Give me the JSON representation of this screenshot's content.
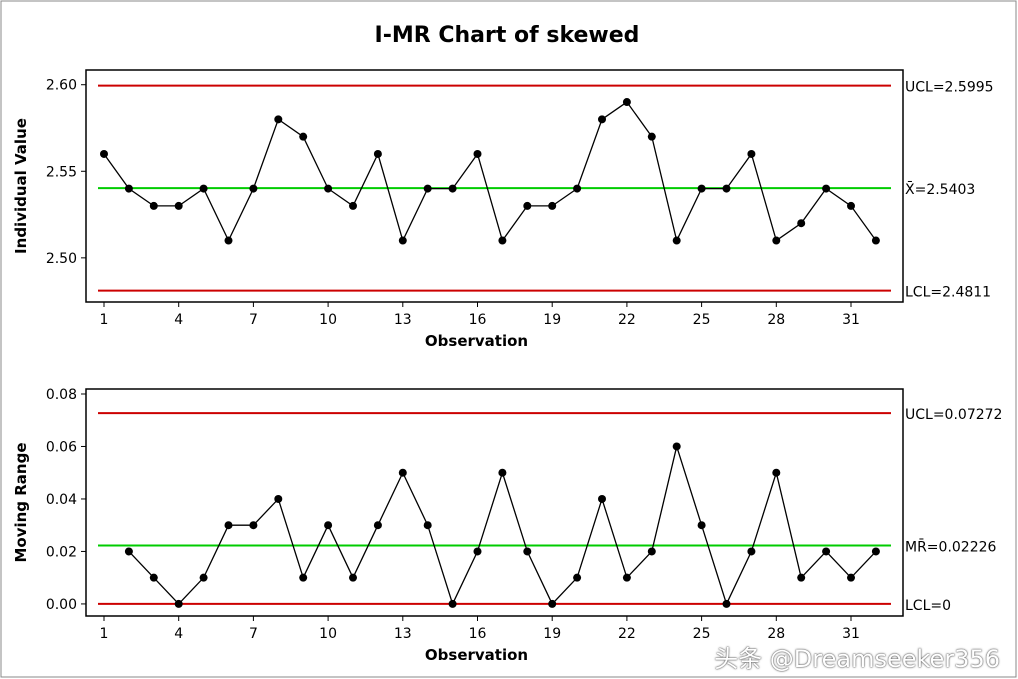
{
  "chart_data": {
    "type": "line",
    "title": "I-MR Chart of skewed",
    "watermark": "头条 @Dreamseeker356",
    "colors": {
      "data": "#000000",
      "limit": "#cc0000",
      "center": "#00cc00"
    },
    "panels": [
      {
        "name": "individual",
        "ylabel": "Individual Value",
        "xlabel": "Observation",
        "ylim": [
          2.4745,
          2.6085
        ],
        "yticks": [
          2.5,
          2.55,
          2.6
        ],
        "ytick_labels": [
          "2.50",
          "2.55",
          "2.60"
        ],
        "xticks": [
          1,
          4,
          7,
          10,
          13,
          16,
          19,
          22,
          25,
          28,
          31
        ],
        "x": [
          1,
          2,
          3,
          4,
          5,
          6,
          7,
          8,
          9,
          10,
          11,
          12,
          13,
          14,
          15,
          16,
          17,
          18,
          19,
          20,
          21,
          22,
          23,
          24,
          25,
          26,
          27,
          28,
          29,
          30,
          31,
          32
        ],
        "values": [
          2.56,
          2.54,
          2.53,
          2.53,
          2.54,
          2.51,
          2.54,
          2.58,
          2.57,
          2.54,
          2.53,
          2.56,
          2.51,
          2.54,
          2.54,
          2.56,
          2.51,
          2.53,
          2.53,
          2.54,
          2.58,
          2.59,
          2.57,
          2.51,
          2.54,
          2.54,
          2.56,
          2.51,
          2.52,
          2.54,
          2.53,
          2.51
        ],
        "ucl": 2.5995,
        "center": 2.5403,
        "lcl": 2.4811,
        "ucl_label": "UCL=2.5995",
        "center_label": "X̄=2.5403",
        "lcl_label": "LCL=2.4811"
      },
      {
        "name": "moving-range",
        "ylabel": "Moving Range",
        "xlabel": "Observation",
        "ylim": [
          -0.0046,
          0.0819
        ],
        "yticks": [
          0,
          0.02,
          0.04,
          0.06,
          0.08
        ],
        "ytick_labels": [
          "0.00",
          "0.02",
          "0.04",
          "0.06",
          "0.08"
        ],
        "xticks": [
          1,
          4,
          7,
          10,
          13,
          16,
          19,
          22,
          25,
          28,
          31
        ],
        "x": [
          2,
          3,
          4,
          5,
          6,
          7,
          8,
          9,
          10,
          11,
          12,
          13,
          14,
          15,
          16,
          17,
          18,
          19,
          20,
          21,
          22,
          23,
          24,
          25,
          26,
          27,
          28,
          29,
          30,
          31,
          32
        ],
        "values": [
          0.02,
          0.01,
          0,
          0.01,
          0.03,
          0.03,
          0.04,
          0.01,
          0.03,
          0.01,
          0.03,
          0.05,
          0.03,
          0,
          0.02,
          0.05,
          0.02,
          0,
          0.01,
          0.04,
          0.01,
          0.02,
          0.06,
          0.03,
          0,
          0.02,
          0.05,
          0.01,
          0.02,
          0.01,
          0.02
        ],
        "ucl": 0.07272,
        "center": 0.02226,
        "lcl": 0,
        "ucl_label": "UCL=0.07272",
        "center_label": "MR̄=0.02226",
        "lcl_label": "LCL=0"
      }
    ]
  }
}
